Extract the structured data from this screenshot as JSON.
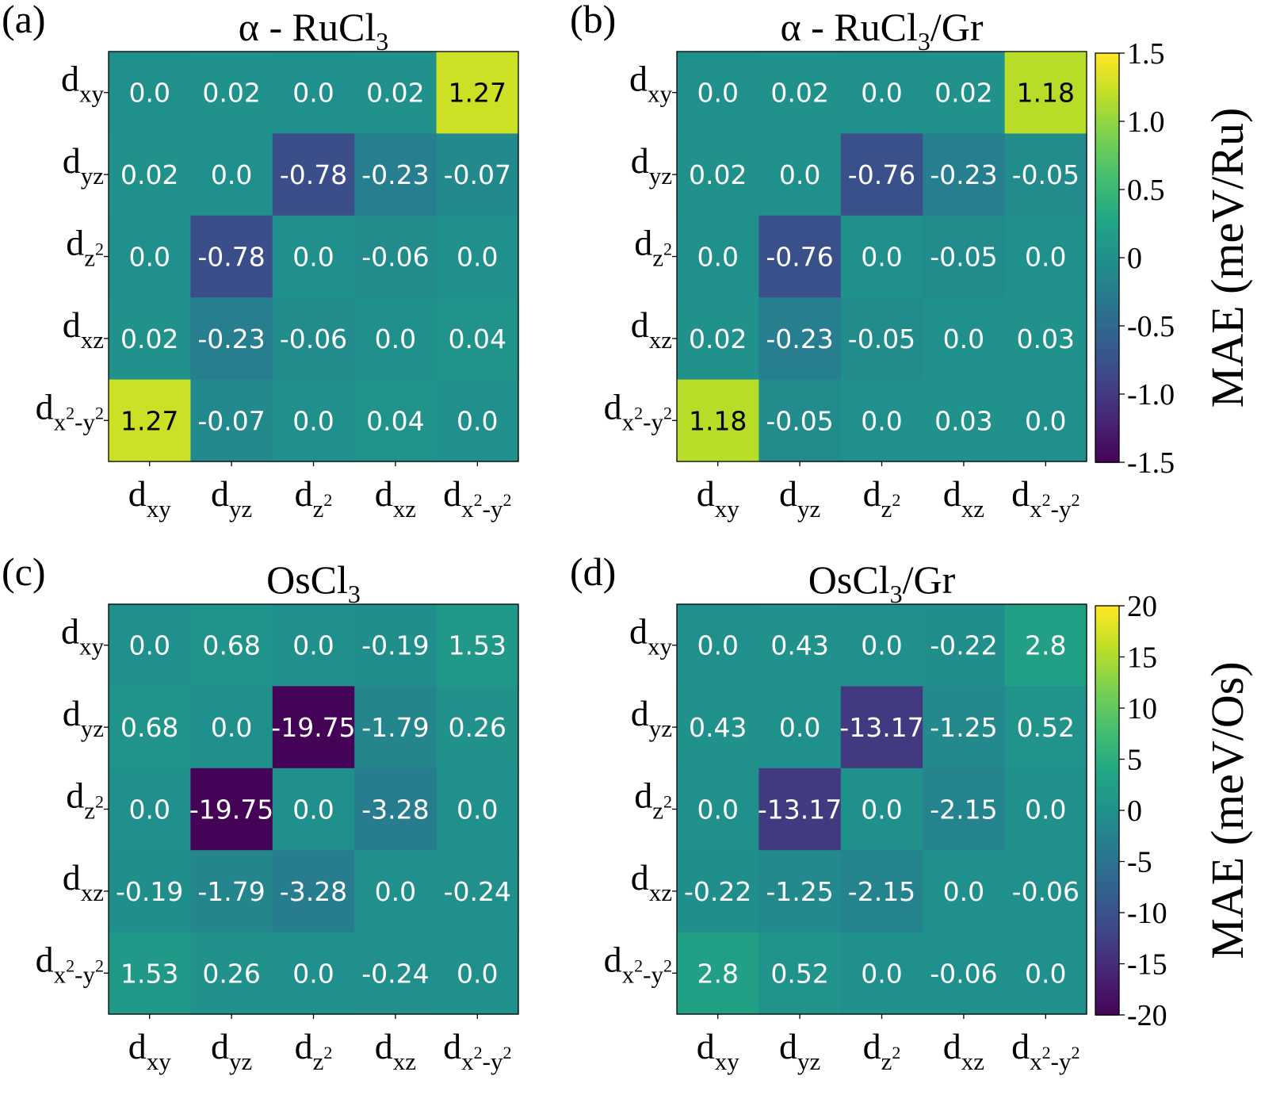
{
  "chart_data": [
    {
      "type": "heatmap",
      "panel_label": "(a)",
      "title": {
        "prefix": "α - RuCl",
        "sub": "3",
        "suffix": ""
      },
      "rows": [
        "d_xy",
        "d_yz",
        "d_z2",
        "d_xz",
        "d_x2-y2"
      ],
      "cols": [
        "d_xy",
        "d_yz",
        "d_z2",
        "d_xz",
        "d_x2-y2"
      ],
      "values": [
        [
          0.0,
          0.02,
          0.0,
          0.02,
          1.27
        ],
        [
          0.02,
          0.0,
          -0.78,
          -0.23,
          -0.07
        ],
        [
          0.0,
          -0.78,
          0.0,
          -0.06,
          0.0
        ],
        [
          0.02,
          -0.23,
          -0.06,
          0.0,
          0.04
        ],
        [
          1.27,
          -0.07,
          0.0,
          0.04,
          0.0
        ]
      ],
      "labels": [
        [
          "0.0",
          "0.02",
          "0.0",
          "0.02",
          "1.27"
        ],
        [
          "0.02",
          "0.0",
          "-0.78",
          "-0.23",
          "-0.07"
        ],
        [
          "0.0",
          "-0.78",
          "0.0",
          "-0.06",
          "0.0"
        ],
        [
          "0.02",
          "-0.23",
          "-0.06",
          "0.0",
          "0.04"
        ],
        [
          "1.27",
          "-0.07",
          "0.0",
          "0.04",
          "0.0"
        ]
      ],
      "vmin": -1.5,
      "vmax": 1.5,
      "colormap": "viridis"
    },
    {
      "type": "heatmap",
      "panel_label": "(b)",
      "title": {
        "prefix": "α - RuCl",
        "sub": "3",
        "suffix": "/Gr"
      },
      "rows": [
        "d_xy",
        "d_yz",
        "d_z2",
        "d_xz",
        "d_x2-y2"
      ],
      "cols": [
        "d_xy",
        "d_yz",
        "d_z2",
        "d_xz",
        "d_x2-y2"
      ],
      "values": [
        [
          0.0,
          0.02,
          0.0,
          0.02,
          1.18
        ],
        [
          0.02,
          0.0,
          -0.76,
          -0.23,
          -0.05
        ],
        [
          0.0,
          -0.76,
          0.0,
          -0.05,
          0.0
        ],
        [
          0.02,
          -0.23,
          -0.05,
          0.0,
          0.03
        ],
        [
          1.18,
          -0.05,
          0.0,
          0.03,
          0.0
        ]
      ],
      "labels": [
        [
          "0.0",
          "0.02",
          "0.0",
          "0.02",
          "1.18"
        ],
        [
          "0.02",
          "0.0",
          "-0.76",
          "-0.23",
          "-0.05"
        ],
        [
          "0.0",
          "-0.76",
          "0.0",
          "-0.05",
          "0.0"
        ],
        [
          "0.02",
          "-0.23",
          "-0.05",
          "0.0",
          "0.03"
        ],
        [
          "1.18",
          "-0.05",
          "0.0",
          "0.03",
          "0.0"
        ]
      ],
      "vmin": -1.5,
      "vmax": 1.5,
      "colormap": "viridis",
      "colorbar": {
        "label": "MAE (meV/Ru)",
        "ticks": [
          1.5,
          1.0,
          0.5,
          0,
          -0.5,
          -1.0,
          -1.5
        ],
        "tick_labels": [
          "1.5",
          "1.0",
          "0.5",
          "0",
          "-0.5",
          "-1.0",
          "-1.5"
        ]
      }
    },
    {
      "type": "heatmap",
      "panel_label": "(c)",
      "title": {
        "prefix": "OsCl",
        "sub": "3",
        "suffix": ""
      },
      "rows": [
        "d_xy",
        "d_yz",
        "d_z2",
        "d_xz",
        "d_x2-y2"
      ],
      "cols": [
        "d_xy",
        "d_yz",
        "d_z2",
        "d_xz",
        "d_x2-y2"
      ],
      "values": [
        [
          0.0,
          0.68,
          0.0,
          -0.19,
          1.53
        ],
        [
          0.68,
          0.0,
          -19.75,
          -1.79,
          0.26
        ],
        [
          0.0,
          -19.75,
          0.0,
          -3.28,
          0.0
        ],
        [
          -0.19,
          -1.79,
          -3.28,
          0.0,
          -0.24
        ],
        [
          1.53,
          0.26,
          0.0,
          -0.24,
          0.0
        ]
      ],
      "labels": [
        [
          "0.0",
          "0.68",
          "0.0",
          "-0.19",
          "1.53"
        ],
        [
          "0.68",
          "0.0",
          "-19.75",
          "-1.79",
          "0.26"
        ],
        [
          "0.0",
          "-19.75",
          "0.0",
          "-3.28",
          "0.0"
        ],
        [
          "-0.19",
          "-1.79",
          "-3.28",
          "0.0",
          "-0.24"
        ],
        [
          "1.53",
          "0.26",
          "0.0",
          "-0.24",
          "0.0"
        ]
      ],
      "vmin": -20,
      "vmax": 20,
      "colormap": "viridis"
    },
    {
      "type": "heatmap",
      "panel_label": "(d)",
      "title": {
        "prefix": "OsCl",
        "sub": "3",
        "suffix": "/Gr"
      },
      "rows": [
        "d_xy",
        "d_yz",
        "d_z2",
        "d_xz",
        "d_x2-y2"
      ],
      "cols": [
        "d_xy",
        "d_yz",
        "d_z2",
        "d_xz",
        "d_x2-y2"
      ],
      "values": [
        [
          0.0,
          0.43,
          0.0,
          -0.22,
          2.8
        ],
        [
          0.43,
          0.0,
          -13.17,
          -1.25,
          0.52
        ],
        [
          0.0,
          -13.17,
          0.0,
          -2.15,
          0.0
        ],
        [
          -0.22,
          -1.25,
          -2.15,
          0.0,
          -0.06
        ],
        [
          2.8,
          0.52,
          0.0,
          -0.06,
          0.0
        ]
      ],
      "labels": [
        [
          "0.0",
          "0.43",
          "0.0",
          "-0.22",
          "2.8"
        ],
        [
          "0.43",
          "0.0",
          "-13.17",
          "-1.25",
          "0.52"
        ],
        [
          "0.0",
          "-13.17",
          "0.0",
          "-2.15",
          "0.0"
        ],
        [
          "-0.22",
          "-1.25",
          "-2.15",
          "0.0",
          "-0.06"
        ],
        [
          "2.8",
          "0.52",
          "0.0",
          "-0.06",
          "0.0"
        ]
      ],
      "vmin": -20,
      "vmax": 20,
      "colormap": "viridis",
      "colorbar": {
        "label": "MAE (meV/Os)",
        "ticks": [
          20,
          15,
          10,
          5,
          0,
          -5,
          -10,
          -15,
          -20
        ],
        "tick_labels": [
          "20",
          "15",
          "10",
          "5",
          "0",
          "-5",
          "-10",
          "-15",
          "-20"
        ]
      }
    }
  ],
  "orbital_labels": {
    "d_xy": {
      "base": "d",
      "sub": "xy",
      "sub_sup": "",
      "sub_tail": ""
    },
    "d_yz": {
      "base": "d",
      "sub": "yz",
      "sub_sup": "",
      "sub_tail": ""
    },
    "d_z2": {
      "base": "d",
      "sub": "z",
      "sub_sup": "2",
      "sub_tail": ""
    },
    "d_xz": {
      "base": "d",
      "sub": "xz",
      "sub_sup": "",
      "sub_tail": ""
    },
    "d_x2-y2": {
      "base": "d",
      "sub": "x",
      "sub_sup": "2",
      "sub_tail": "-y",
      "sub_sup2": "2"
    }
  }
}
